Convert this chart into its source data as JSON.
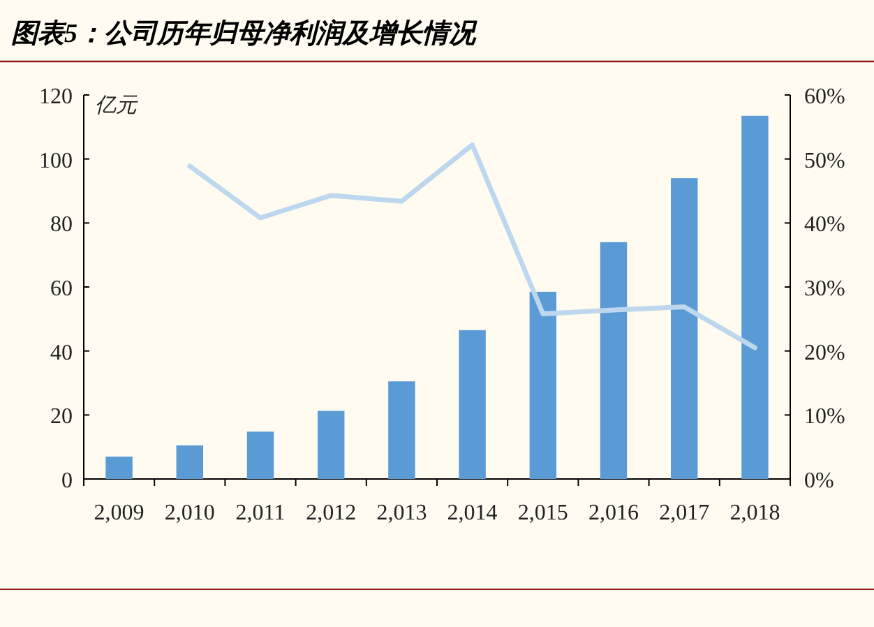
{
  "chart_data": {
    "type": "bar",
    "title": "图表5：公司历年归母净利润及增长情况",
    "ylabel": "亿元",
    "categories": [
      "2,009",
      "2,010",
      "2,011",
      "2,012",
      "2,013",
      "2,014",
      "2,015",
      "2,016",
      "2,017",
      "2,018"
    ],
    "series": [
      {
        "color": "#5b9bd5",
        "values": [
          7,
          10.5,
          14.8,
          21.3,
          30.5,
          46.5,
          58.5,
          74,
          94,
          113.5
        ]
      },
      {
        "type": "line",
        "axis": "y2",
        "color": "#bdd7ee",
        "values": [
          null,
          48.9,
          40.8,
          44.3,
          43.4,
          52.2,
          25.8,
          26.4,
          26.9,
          20.5
        ]
      }
    ],
    "ylim": [
      0,
      120
    ],
    "yticks": [
      0,
      20,
      40,
      60,
      80,
      100,
      120
    ],
    "y2lim": [
      0,
      60
    ],
    "y2ticks": [
      {
        "value": 0,
        "label": "0%"
      },
      {
        "value": 10,
        "label": "10%"
      },
      {
        "value": 20,
        "label": "20%"
      },
      {
        "value": 30,
        "label": "30%"
      },
      {
        "value": 40,
        "label": "40%"
      },
      {
        "value": 50,
        "label": "50%"
      },
      {
        "value": 60,
        "label": "60%"
      }
    ],
    "grid": false,
    "marker": "none"
  }
}
